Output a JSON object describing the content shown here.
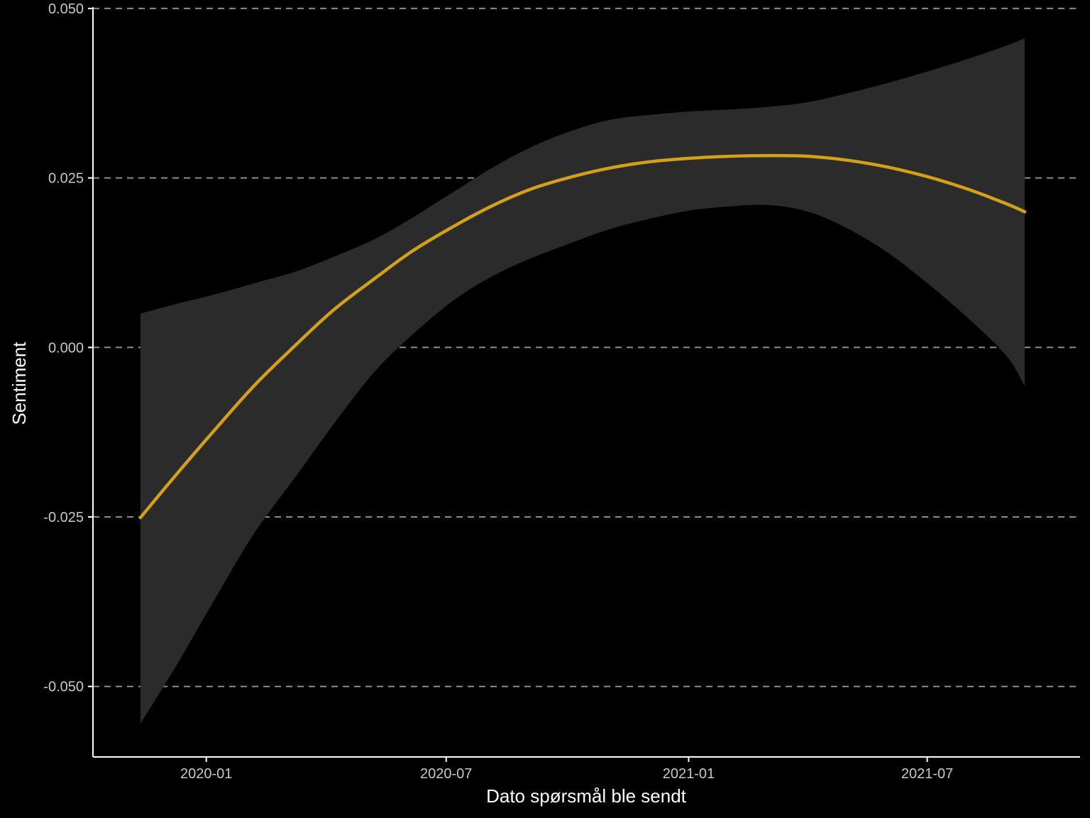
{
  "chart_data": {
    "type": "line",
    "title": "",
    "xlabel": "Dato spørsmål ble sendt",
    "ylabel": "Sentiment",
    "x_axis": {
      "type": "date",
      "range": [
        "2019-10-07",
        "2021-10-25"
      ],
      "ticks": [
        {
          "date": "2020-01-01",
          "label": "2020-01"
        },
        {
          "date": "2020-07-01",
          "label": "2020-07"
        },
        {
          "date": "2021-01-01",
          "label": "2021-01"
        },
        {
          "date": "2021-07-01",
          "label": "2021-07"
        }
      ]
    },
    "y_axis": {
      "range": [
        -0.0604,
        0.0502
      ],
      "ticks": [
        {
          "value": -0.05,
          "label": "-0.050"
        },
        {
          "value": -0.025,
          "label": "-0.025"
        },
        {
          "value": 0.0,
          "label": "0.000"
        },
        {
          "value": 0.025,
          "label": "0.025"
        },
        {
          "value": 0.05,
          "label": "0.050"
        }
      ]
    },
    "grid": {
      "horizontal": true,
      "vertical": false,
      "style": "dashed",
      "color": "#8c8c8c"
    },
    "series": [
      {
        "kind": "smooth-line",
        "color": "#d4a017",
        "points": [
          {
            "x": "2019-11-12",
            "y": -0.0251
          },
          {
            "x": "2019-12-09",
            "y": -0.0188
          },
          {
            "x": "2020-01-09",
            "y": -0.0118
          },
          {
            "x": "2020-02-07",
            "y": -0.0055
          },
          {
            "x": "2020-03-09",
            "y": 0.0004
          },
          {
            "x": "2020-04-07",
            "y": 0.0056
          },
          {
            "x": "2020-05-08",
            "y": 0.0102
          },
          {
            "x": "2020-06-06",
            "y": 0.0143
          },
          {
            "x": "2020-07-07",
            "y": 0.0179
          },
          {
            "x": "2020-08-05",
            "y": 0.0209
          },
          {
            "x": "2020-09-04",
            "y": 0.0234
          },
          {
            "x": "2020-10-05",
            "y": 0.0252
          },
          {
            "x": "2020-11-03",
            "y": 0.0265
          },
          {
            "x": "2020-12-03",
            "y": 0.0274
          },
          {
            "x": "2021-01-02",
            "y": 0.0279
          },
          {
            "x": "2021-02-01",
            "y": 0.0282
          },
          {
            "x": "2021-03-03",
            "y": 0.0283
          },
          {
            "x": "2021-04-02",
            "y": 0.0282
          },
          {
            "x": "2021-05-02",
            "y": 0.0276
          },
          {
            "x": "2021-06-01",
            "y": 0.0266
          },
          {
            "x": "2021-07-01",
            "y": 0.0252
          },
          {
            "x": "2021-07-31",
            "y": 0.0234
          },
          {
            "x": "2021-08-30",
            "y": 0.0212
          },
          {
            "x": "2021-09-13",
            "y": 0.02
          }
        ]
      },
      {
        "kind": "confidence-band",
        "color": "#2b2b2b",
        "points": [
          {
            "x": "2019-11-12",
            "lower": -0.0555,
            "upper": 0.005
          },
          {
            "x": "2019-12-09",
            "lower": -0.047,
            "upper": 0.0064
          },
          {
            "x": "2020-01-09",
            "lower": -0.0366,
            "upper": 0.0079
          },
          {
            "x": "2020-02-07",
            "lower": -0.0272,
            "upper": 0.0095
          },
          {
            "x": "2020-03-09",
            "lower": -0.019,
            "upper": 0.0112
          },
          {
            "x": "2020-04-07",
            "lower": -0.0112,
            "upper": 0.0134
          },
          {
            "x": "2020-05-08",
            "lower": -0.0035,
            "upper": 0.016
          },
          {
            "x": "2020-06-06",
            "lower": 0.002,
            "upper": 0.0192
          },
          {
            "x": "2020-07-07",
            "lower": 0.007,
            "upper": 0.023
          },
          {
            "x": "2020-08-05",
            "lower": 0.0105,
            "upper": 0.0265
          },
          {
            "x": "2020-09-04",
            "lower": 0.0132,
            "upper": 0.0296
          },
          {
            "x": "2020-10-05",
            "lower": 0.0155,
            "upper": 0.032
          },
          {
            "x": "2020-11-03",
            "lower": 0.0175,
            "upper": 0.0336
          },
          {
            "x": "2020-12-03",
            "lower": 0.019,
            "upper": 0.0343
          },
          {
            "x": "2021-01-02",
            "lower": 0.0202,
            "upper": 0.0348
          },
          {
            "x": "2021-02-01",
            "lower": 0.0208,
            "upper": 0.0351
          },
          {
            "x": "2021-03-03",
            "lower": 0.021,
            "upper": 0.0355
          },
          {
            "x": "2021-04-02",
            "lower": 0.02,
            "upper": 0.0362
          },
          {
            "x": "2021-05-02",
            "lower": 0.0175,
            "upper": 0.0375
          },
          {
            "x": "2021-06-01",
            "lower": 0.014,
            "upper": 0.039
          },
          {
            "x": "2021-07-01",
            "lower": 0.0095,
            "upper": 0.0407
          },
          {
            "x": "2021-07-31",
            "lower": 0.0045,
            "upper": 0.0425
          },
          {
            "x": "2021-08-30",
            "lower": -0.0012,
            "upper": 0.0445
          },
          {
            "x": "2021-09-13",
            "lower": -0.0057,
            "upper": 0.0456
          }
        ]
      }
    ]
  }
}
